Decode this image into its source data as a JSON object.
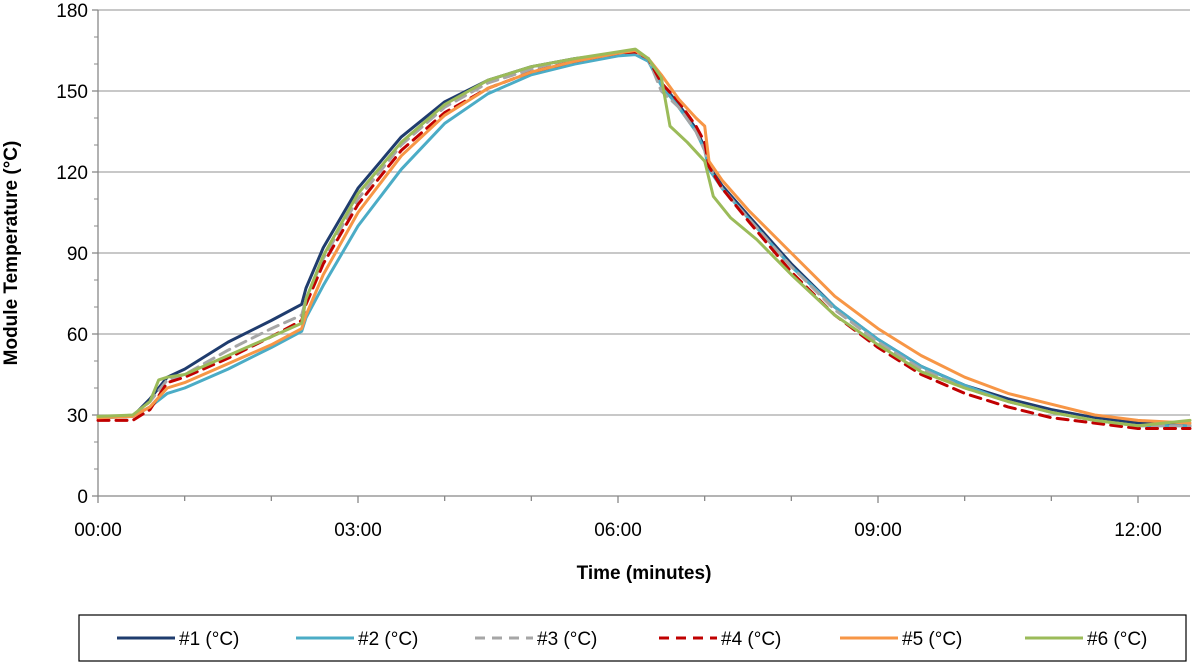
{
  "chart_data": {
    "type": "line",
    "title": "",
    "xlabel": "Time (minutes)",
    "ylabel": "Module Temperature (°C)",
    "xlim": [
      0,
      12.6
    ],
    "ylim": [
      0,
      180
    ],
    "x_ticks": [
      0,
      3,
      6,
      9,
      12
    ],
    "x_tick_labels": [
      "00:00",
      "03:00",
      "06:00",
      "09:00",
      "12:00"
    ],
    "y_ticks": [
      0,
      30,
      60,
      90,
      120,
      150,
      180
    ],
    "y_tick_labels": [
      "0",
      "30",
      "60",
      "90",
      "120",
      "150",
      "180"
    ],
    "grid": "horizontal major lines at 30 °C intervals",
    "legend_position": "bottom",
    "series": [
      {
        "name": "#1 (°C)",
        "color": "#1f3c6e",
        "dash": "solid",
        "points": [
          [
            0,
            29
          ],
          [
            0.4,
            29.5
          ],
          [
            0.6,
            36
          ],
          [
            0.8,
            44
          ],
          [
            1.0,
            47
          ],
          [
            1.5,
            57
          ],
          [
            2.0,
            65
          ],
          [
            2.35,
            71
          ],
          [
            2.4,
            77
          ],
          [
            2.6,
            92
          ],
          [
            3.0,
            114
          ],
          [
            3.5,
            133
          ],
          [
            4.0,
            146
          ],
          [
            4.5,
            154
          ],
          [
            5.0,
            159
          ],
          [
            5.5,
            162
          ],
          [
            6.0,
            164
          ],
          [
            6.2,
            164.5
          ],
          [
            6.35,
            162
          ],
          [
            6.5,
            153
          ],
          [
            6.7,
            145
          ],
          [
            6.9,
            136
          ],
          [
            7.0,
            129
          ],
          [
            7.05,
            122
          ],
          [
            7.2,
            115
          ],
          [
            7.5,
            104
          ],
          [
            8.0,
            86
          ],
          [
            8.5,
            70
          ],
          [
            9.0,
            58
          ],
          [
            9.5,
            48
          ],
          [
            10.0,
            41
          ],
          [
            10.5,
            36
          ],
          [
            11.0,
            32
          ],
          [
            11.5,
            29
          ],
          [
            12.0,
            27
          ],
          [
            12.6,
            26
          ]
        ]
      },
      {
        "name": "#2 (°C)",
        "color": "#4bacc6",
        "dash": "solid",
        "points": [
          [
            0,
            29
          ],
          [
            0.4,
            29.5
          ],
          [
            0.6,
            33
          ],
          [
            0.8,
            38
          ],
          [
            1.0,
            40
          ],
          [
            1.5,
            47
          ],
          [
            2.0,
            55
          ],
          [
            2.35,
            61
          ],
          [
            2.4,
            66
          ],
          [
            2.6,
            78
          ],
          [
            3.0,
            100
          ],
          [
            3.5,
            121
          ],
          [
            4.0,
            138
          ],
          [
            4.5,
            149
          ],
          [
            5.0,
            156
          ],
          [
            5.5,
            160
          ],
          [
            6.0,
            163
          ],
          [
            6.2,
            163.5
          ],
          [
            6.35,
            161
          ],
          [
            6.5,
            152
          ],
          [
            6.7,
            144
          ],
          [
            6.9,
            135
          ],
          [
            7.0,
            128
          ],
          [
            7.05,
            121
          ],
          [
            7.2,
            114
          ],
          [
            7.5,
            103
          ],
          [
            8.0,
            85
          ],
          [
            8.5,
            70
          ],
          [
            9.0,
            58
          ],
          [
            9.5,
            48
          ],
          [
            10.0,
            41
          ],
          [
            10.5,
            35
          ],
          [
            11.0,
            31
          ],
          [
            11.5,
            28
          ],
          [
            12.0,
            26
          ],
          [
            12.6,
            26
          ]
        ]
      },
      {
        "name": "#3 (°C)",
        "color": "#a6a6a6",
        "dash": "dash",
        "points": [
          [
            0,
            29
          ],
          [
            0.4,
            29.5
          ],
          [
            0.6,
            35
          ],
          [
            0.8,
            43
          ],
          [
            1.0,
            45
          ],
          [
            1.5,
            54
          ],
          [
            2.0,
            62
          ],
          [
            2.35,
            67
          ],
          [
            2.4,
            73
          ],
          [
            2.6,
            88
          ],
          [
            3.0,
            110
          ],
          [
            3.5,
            130
          ],
          [
            4.0,
            144
          ],
          [
            4.5,
            153
          ],
          [
            5.0,
            158
          ],
          [
            5.5,
            161
          ],
          [
            6.0,
            164
          ],
          [
            6.2,
            164.5
          ],
          [
            6.35,
            162
          ],
          [
            6.5,
            150
          ],
          [
            6.7,
            144
          ],
          [
            6.9,
            135
          ],
          [
            7.0,
            128
          ],
          [
            7.05,
            122
          ],
          [
            7.2,
            114
          ],
          [
            7.5,
            103
          ],
          [
            8.0,
            85
          ],
          [
            8.5,
            69
          ],
          [
            9.0,
            57
          ],
          [
            9.5,
            47
          ],
          [
            10.0,
            40
          ],
          [
            10.5,
            35
          ],
          [
            11.0,
            31
          ],
          [
            11.5,
            28
          ],
          [
            12.0,
            26
          ],
          [
            12.6,
            26
          ]
        ]
      },
      {
        "name": "#4 (°C)",
        "color": "#c00000",
        "dash": "dash",
        "points": [
          [
            0,
            28
          ],
          [
            0.4,
            28
          ],
          [
            0.6,
            32
          ],
          [
            0.8,
            42
          ],
          [
            1.0,
            44
          ],
          [
            1.5,
            51
          ],
          [
            2.0,
            59
          ],
          [
            2.35,
            65
          ],
          [
            2.4,
            71
          ],
          [
            2.6,
            86
          ],
          [
            3.0,
            108
          ],
          [
            3.5,
            128
          ],
          [
            4.0,
            142
          ],
          [
            4.5,
            151
          ],
          [
            5.0,
            157
          ],
          [
            5.5,
            161
          ],
          [
            6.0,
            164
          ],
          [
            6.2,
            164.5
          ],
          [
            6.35,
            162
          ],
          [
            6.5,
            153
          ],
          [
            6.7,
            146
          ],
          [
            6.9,
            137
          ],
          [
            7.0,
            131
          ],
          [
            7.05,
            122
          ],
          [
            7.2,
            114
          ],
          [
            7.5,
            102
          ],
          [
            8.0,
            83
          ],
          [
            8.5,
            67
          ],
          [
            9.0,
            55
          ],
          [
            9.5,
            45
          ],
          [
            10.0,
            38
          ],
          [
            10.5,
            33
          ],
          [
            11.0,
            29
          ],
          [
            11.5,
            27
          ],
          [
            12.0,
            25
          ],
          [
            12.6,
            25
          ]
        ]
      },
      {
        "name": "#5 (°C)",
        "color": "#f79646",
        "dash": "solid",
        "points": [
          [
            0,
            29
          ],
          [
            0.4,
            29.5
          ],
          [
            0.6,
            33
          ],
          [
            0.8,
            40
          ],
          [
            1.0,
            42
          ],
          [
            1.5,
            49
          ],
          [
            2.0,
            56
          ],
          [
            2.35,
            62
          ],
          [
            2.4,
            67
          ],
          [
            2.6,
            82
          ],
          [
            3.0,
            105
          ],
          [
            3.5,
            126
          ],
          [
            4.0,
            141
          ],
          [
            4.5,
            151
          ],
          [
            5.0,
            157
          ],
          [
            5.5,
            161
          ],
          [
            6.0,
            164
          ],
          [
            6.2,
            165
          ],
          [
            6.35,
            162
          ],
          [
            6.5,
            156
          ],
          [
            6.7,
            147
          ],
          [
            6.9,
            140
          ],
          [
            7.0,
            137
          ],
          [
            7.05,
            124
          ],
          [
            7.2,
            117
          ],
          [
            7.5,
            106
          ],
          [
            8.0,
            90
          ],
          [
            8.5,
            74
          ],
          [
            9.0,
            62
          ],
          [
            9.5,
            52
          ],
          [
            10.0,
            44
          ],
          [
            10.5,
            38
          ],
          [
            11.0,
            34
          ],
          [
            11.5,
            30
          ],
          [
            12.0,
            28
          ],
          [
            12.6,
            27
          ]
        ]
      },
      {
        "name": "#6 (°C)",
        "color": "#9bbb59",
        "dash": "solid",
        "points": [
          [
            0,
            29.5
          ],
          [
            0.4,
            30
          ],
          [
            0.6,
            35
          ],
          [
            0.7,
            43
          ],
          [
            0.8,
            44
          ],
          [
            1.0,
            45
          ],
          [
            1.5,
            52
          ],
          [
            2.0,
            59
          ],
          [
            2.35,
            64
          ],
          [
            2.4,
            73
          ],
          [
            2.6,
            89
          ],
          [
            3.0,
            112
          ],
          [
            3.5,
            131
          ],
          [
            4.0,
            145
          ],
          [
            4.5,
            154
          ],
          [
            5.0,
            159
          ],
          [
            5.5,
            162
          ],
          [
            6.0,
            164.5
          ],
          [
            6.2,
            165.5
          ],
          [
            6.35,
            162
          ],
          [
            6.5,
            155
          ],
          [
            6.6,
            137
          ],
          [
            6.8,
            131
          ],
          [
            7.0,
            124
          ],
          [
            7.1,
            111
          ],
          [
            7.3,
            103
          ],
          [
            7.6,
            95
          ],
          [
            8.0,
            82
          ],
          [
            8.5,
            67
          ],
          [
            9.0,
            56
          ],
          [
            9.5,
            46
          ],
          [
            10.0,
            40
          ],
          [
            10.5,
            35
          ],
          [
            11.0,
            31
          ],
          [
            11.5,
            28
          ],
          [
            12.0,
            26
          ],
          [
            12.6,
            28
          ]
        ]
      }
    ]
  }
}
